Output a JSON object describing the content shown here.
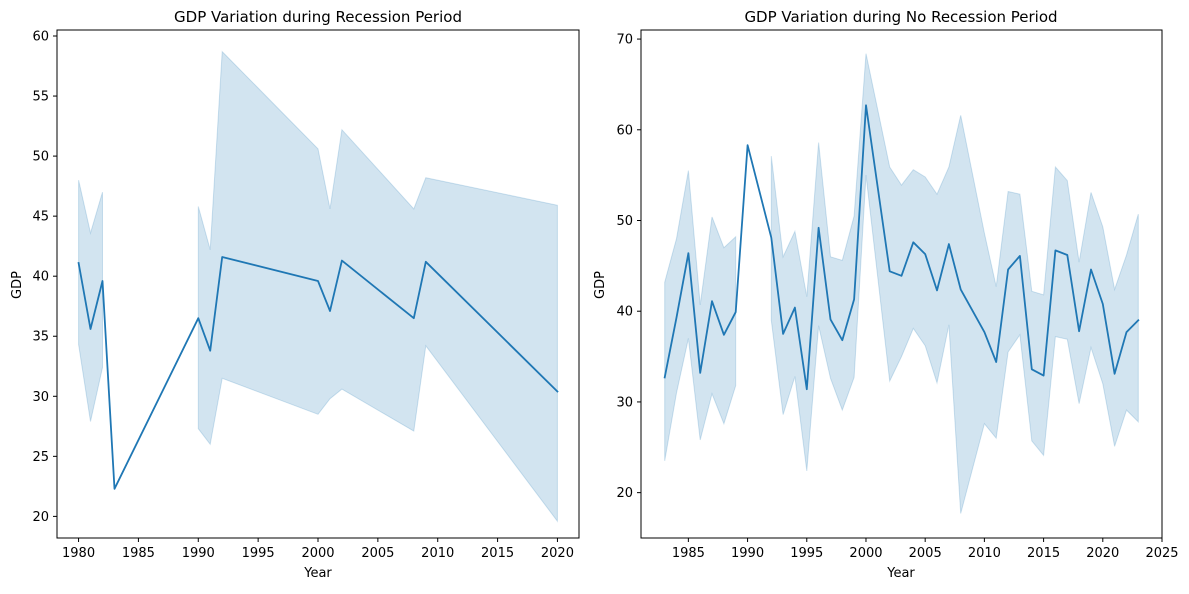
{
  "chart_data": [
    {
      "type": "line",
      "title": "GDP Variation during Recession Period",
      "xlabel": "Year",
      "ylabel": "GDP",
      "xlim": [
        1978.2,
        2021.8
      ],
      "ylim": [
        18.2,
        60.5
      ],
      "xticks": [
        1980,
        1985,
        1990,
        1995,
        2000,
        2005,
        2010,
        2015,
        2020
      ],
      "yticks": [
        20,
        25,
        30,
        35,
        40,
        45,
        50,
        55,
        60
      ],
      "grid": false,
      "colors": {
        "line": "#1f77b4",
        "band": "#1f77b4"
      },
      "series": [
        {
          "segments": [
            [
              {
                "x": 1980,
                "y": 41.1,
                "lo": 34.3,
                "hi": 48.0
              },
              {
                "x": 1981,
                "y": 35.6,
                "lo": 27.9,
                "hi": 43.6
              },
              {
                "x": 1982,
                "y": 39.6,
                "lo": 32.4,
                "hi": 47.0
              }
            ],
            [
              {
                "x": 1983,
                "y": 22.3
              }
            ],
            [
              {
                "x": 1990,
                "y": 36.5,
                "lo": 27.3,
                "hi": 45.8
              },
              {
                "x": 1991,
                "y": 33.8,
                "lo": 26.0,
                "hi": 42.2
              },
              {
                "x": 1992,
                "y": 41.6,
                "lo": 31.5,
                "hi": 58.7
              },
              {
                "x": 2000,
                "y": 39.6,
                "lo": 28.5,
                "hi": 50.6
              },
              {
                "x": 2001,
                "y": 37.1,
                "lo": 29.8,
                "hi": 45.6
              },
              {
                "x": 2002,
                "y": 41.3,
                "lo": 30.6,
                "hi": 52.2
              },
              {
                "x": 2008,
                "y": 36.5,
                "lo": 27.1,
                "hi": 45.6
              },
              {
                "x": 2009,
                "y": 41.2,
                "lo": 34.2,
                "hi": 48.2
              },
              {
                "x": 2020,
                "y": 30.4,
                "lo": 19.6,
                "hi": 45.9
              }
            ]
          ]
        }
      ]
    },
    {
      "type": "line",
      "title": "GDP Variation during No Recession Period",
      "xlabel": "Year",
      "ylabel": "GDP",
      "xlim": [
        1981.0,
        2025.0
      ],
      "ylim": [
        15.0,
        71.0
      ],
      "xticks": [
        1985,
        1990,
        1995,
        2000,
        2005,
        2010,
        2015,
        2020,
        2025
      ],
      "yticks": [
        20,
        30,
        40,
        50,
        60,
        70
      ],
      "grid": false,
      "colors": {
        "line": "#1f77b4",
        "band": "#1f77b4"
      },
      "series": [
        {
          "segments": [
            [
              {
                "x": 1983,
                "y": 32.7,
                "lo": 23.5,
                "hi": 43.2
              },
              {
                "x": 1984,
                "y": 39.3,
                "lo": 31.0,
                "hi": 48.0
              },
              {
                "x": 1985,
                "y": 46.4,
                "lo": 37.0,
                "hi": 55.5
              },
              {
                "x": 1986,
                "y": 33.2,
                "lo": 25.8,
                "hi": 40.7
              },
              {
                "x": 1987,
                "y": 41.1,
                "lo": 30.9,
                "hi": 50.4
              },
              {
                "x": 1988,
                "y": 37.4,
                "lo": 27.6,
                "hi": 47.0
              },
              {
                "x": 1989,
                "y": 39.9,
                "lo": 31.8,
                "hi": 48.2
              }
            ],
            [
              {
                "x": 1990,
                "y": 58.3
              }
            ],
            [
              {
                "x": 1992,
                "y": 48.1,
                "lo": 39.0,
                "hi": 57.1
              },
              {
                "x": 1993,
                "y": 37.5,
                "lo": 28.6,
                "hi": 46.0
              },
              {
                "x": 1994,
                "y": 40.4,
                "lo": 32.8,
                "hi": 48.8
              },
              {
                "x": 1995,
                "y": 31.4,
                "lo": 22.4,
                "hi": 41.6
              },
              {
                "x": 1996,
                "y": 49.2,
                "lo": 38.4,
                "hi": 58.6
              },
              {
                "x": 1997,
                "y": 39.1,
                "lo": 32.6,
                "hi": 46.0
              },
              {
                "x": 1998,
                "y": 36.8,
                "lo": 29.1,
                "hi": 45.6
              },
              {
                "x": 1999,
                "y": 41.3,
                "lo": 32.7,
                "hi": 50.5
              },
              {
                "x": 2000,
                "y": 62.7,
                "lo": 55.0,
                "hi": 68.4
              },
              {
                "x": 2002,
                "y": 44.4,
                "lo": 32.3,
                "hi": 55.9
              },
              {
                "x": 2003,
                "y": 43.9,
                "lo": 35.0,
                "hi": 53.9
              },
              {
                "x": 2004,
                "y": 47.6,
                "lo": 38.1,
                "hi": 55.6
              },
              {
                "x": 2005,
                "y": 46.3,
                "lo": 36.2,
                "hi": 54.8
              },
              {
                "x": 2006,
                "y": 42.3,
                "lo": 32.1,
                "hi": 52.9
              },
              {
                "x": 2007,
                "y": 47.4,
                "lo": 38.5,
                "hi": 55.9
              },
              {
                "x": 2008,
                "y": 42.4,
                "lo": 17.7,
                "hi": 61.6
              },
              {
                "x": 2010,
                "y": 37.7,
                "lo": 27.6,
                "hi": 48.6
              },
              {
                "x": 2011,
                "y": 34.4,
                "lo": 26.0,
                "hi": 42.7
              },
              {
                "x": 2012,
                "y": 44.6,
                "lo": 35.5,
                "hi": 53.2
              },
              {
                "x": 2013,
                "y": 46.1,
                "lo": 37.4,
                "hi": 52.9
              },
              {
                "x": 2014,
                "y": 33.6,
                "lo": 25.7,
                "hi": 42.2
              },
              {
                "x": 2015,
                "y": 32.9,
                "lo": 24.1,
                "hi": 41.8
              },
              {
                "x": 2016,
                "y": 46.7,
                "lo": 37.2,
                "hi": 55.9
              },
              {
                "x": 2017,
                "y": 46.2,
                "lo": 36.9,
                "hi": 54.4
              },
              {
                "x": 2018,
                "y": 37.8,
                "lo": 29.8,
                "hi": 45.4
              },
              {
                "x": 2019,
                "y": 44.6,
                "lo": 36.0,
                "hi": 53.1
              },
              {
                "x": 2020,
                "y": 40.8,
                "lo": 32.0,
                "hi": 49.3
              },
              {
                "x": 2021,
                "y": 33.1,
                "lo": 25.1,
                "hi": 42.4
              },
              {
                "x": 2022,
                "y": 37.7,
                "lo": 29.1,
                "hi": 46.2
              },
              {
                "x": 2023,
                "y": 39.0,
                "lo": 27.8,
                "hi": 50.7
              }
            ]
          ]
        }
      ]
    }
  ]
}
